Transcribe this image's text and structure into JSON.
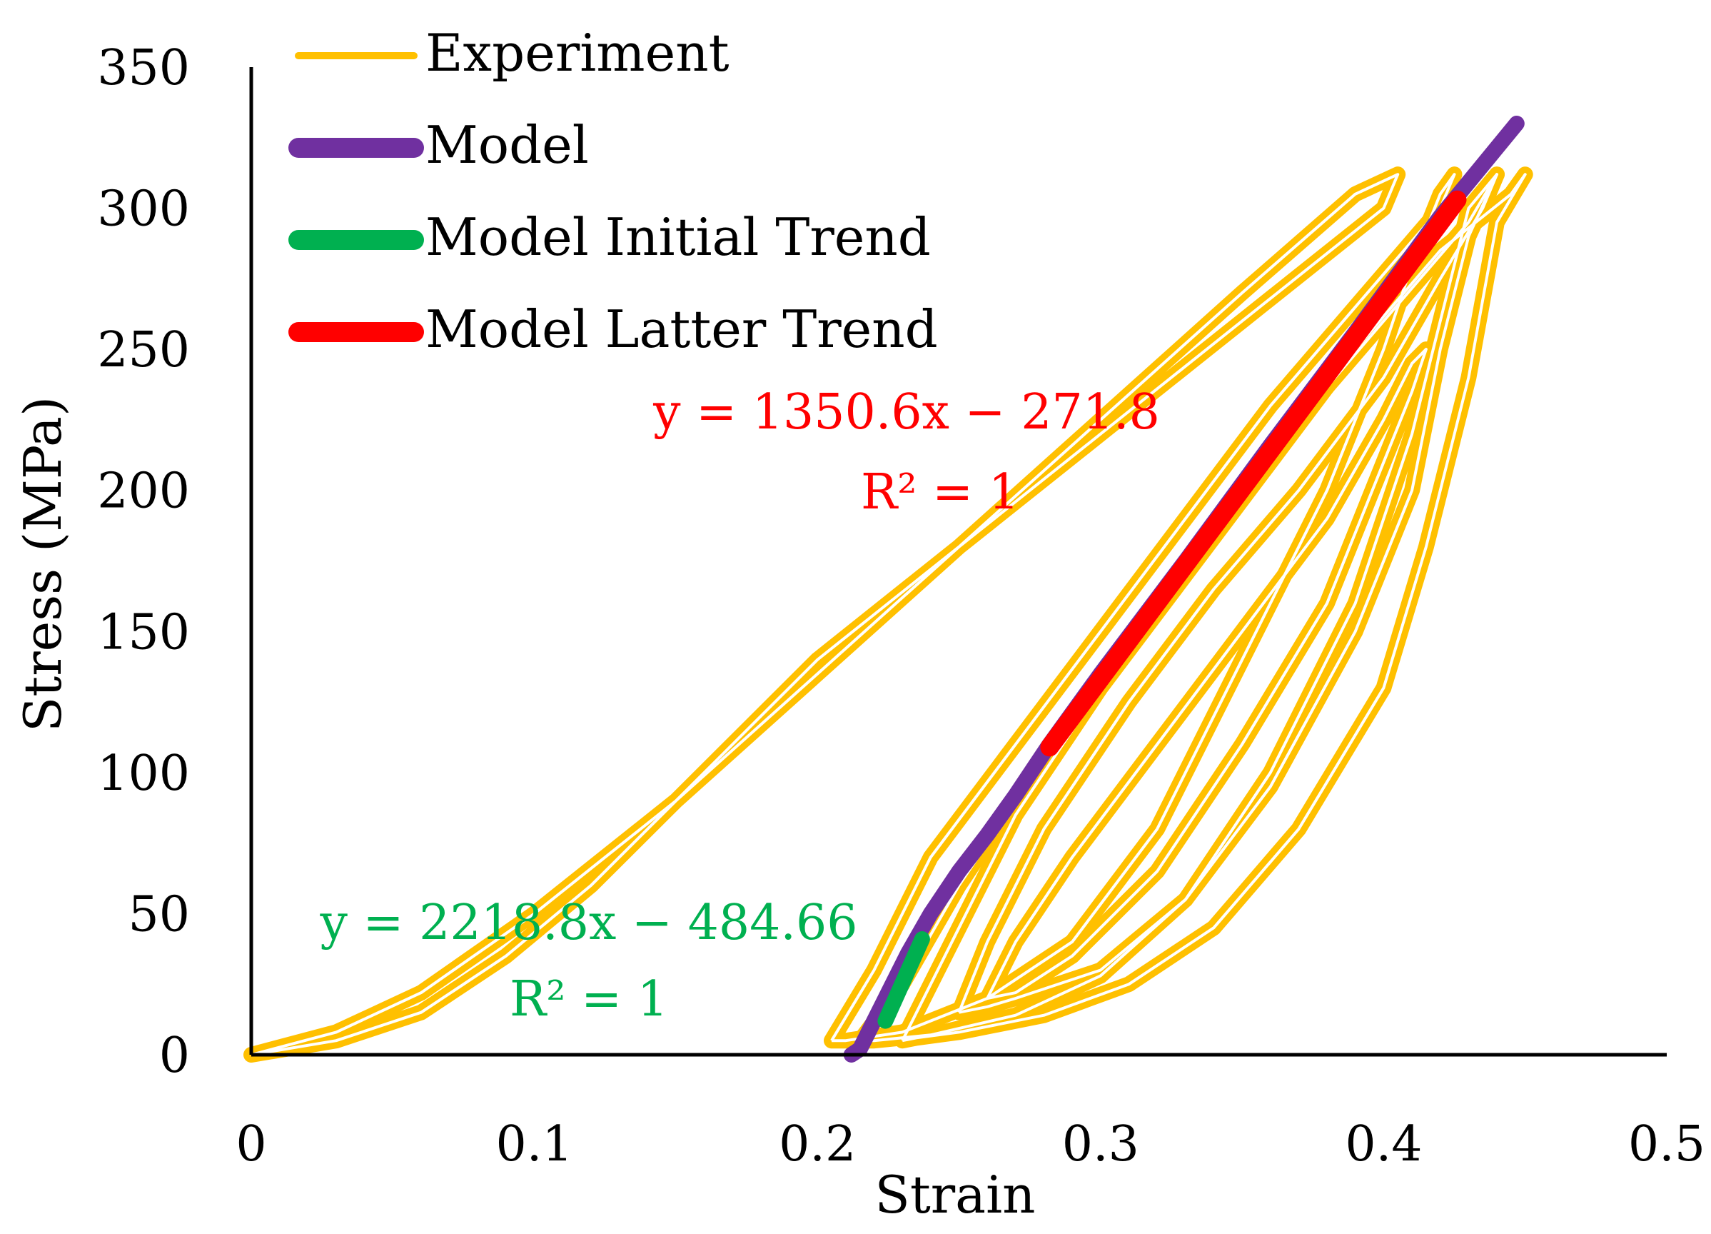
{
  "chart_data": {
    "type": "line",
    "title": "",
    "xlabel": "Strain",
    "ylabel": "Stress (MPa)",
    "xlim": [
      0,
      0.5
    ],
    "ylim": [
      0,
      350
    ],
    "xticks": [
      0,
      0.1,
      0.2,
      0.3,
      0.4,
      0.5
    ],
    "xtick_labels": [
      "0",
      "0.1",
      "0.2",
      "0.3",
      "0.4",
      "0.5"
    ],
    "yticks": [
      0,
      50,
      100,
      150,
      200,
      250,
      300,
      350
    ],
    "ytick_labels": [
      "0",
      "50",
      "100",
      "150",
      "200",
      "250",
      "300",
      "350"
    ],
    "legend_position": "top-left",
    "series": [
      {
        "name": "Experiment",
        "color": "#FFC000",
        "style": "cyclic-hysteresis",
        "loops": [
          {
            "x": [
              0,
              0.03,
              0.06,
              0.09,
              0.12,
              0.15,
              0.2,
              0.25,
              0.3,
              0.35,
              0.4,
              0.405,
              0.39,
              0.35,
              0.3,
              0.25,
              0.2,
              0.15,
              0.1,
              0.06,
              0.03,
              0
            ],
            "y": [
              0,
              5,
              15,
              35,
              60,
              90,
              140,
              180,
              220,
              260,
              300,
              312,
              305,
              270,
              225,
              180,
              135,
              90,
              50,
              22,
              8,
              0
            ]
          },
          {
            "x": [
              0.205,
              0.22,
              0.24,
              0.27,
              0.3,
              0.33,
              0.36,
              0.39,
              0.42,
              0.425,
              0.42,
              0.41,
              0.4,
              0.38,
              0.35,
              0.32,
              0.29,
              0.26,
              0.23,
              0.21,
              0.205
            ],
            "y": [
              5,
              30,
              70,
              110,
              150,
              190,
              230,
              265,
              300,
              312,
              305,
              280,
              250,
              200,
              140,
              80,
              40,
              20,
              8,
              5,
              5
            ]
          },
          {
            "x": [
              0.215,
              0.23,
              0.25,
              0.28,
              0.31,
              0.34,
              0.37,
              0.4,
              0.43,
              0.44,
              0.43,
              0.42,
              0.41,
              0.39,
              0.36,
              0.33,
              0.3,
              0.27,
              0.24,
              0.22,
              0.215
            ],
            "y": [
              5,
              25,
              60,
              105,
              145,
              185,
              225,
              260,
              295,
              312,
              300,
              260,
              220,
              160,
              100,
              55,
              28,
              14,
              7,
              5,
              5
            ]
          },
          {
            "x": [
              0.23,
              0.25,
              0.27,
              0.3,
              0.33,
              0.36,
              0.39,
              0.42,
              0.445,
              0.45,
              0.44,
              0.43,
              0.415,
              0.4,
              0.37,
              0.34,
              0.31,
              0.28,
              0.25,
              0.235,
              0.23
            ],
            "y": [
              5,
              45,
              85,
              130,
              170,
              210,
              250,
              285,
              305,
              312,
              295,
              240,
              180,
              130,
              80,
              45,
              25,
              14,
              8,
              6,
              5
            ]
          },
          {
            "x": [
              0.25,
              0.26,
              0.28,
              0.31,
              0.34,
              0.37,
              0.4,
              0.42,
              0.435,
              0.44,
              0.43,
              0.42,
              0.41,
              0.39,
              0.36,
              0.33,
              0.3,
              0.27,
              0.26,
              0.25
            ],
            "y": [
              15,
              40,
              80,
              125,
              165,
              200,
              240,
              275,
              300,
              312,
              290,
              250,
              200,
              150,
              95,
              55,
              30,
              20,
              17,
              15
            ]
          },
          {
            "x": [
              0.26,
              0.27,
              0.29,
              0.32,
              0.35,
              0.38,
              0.4,
              0.41,
              0.415,
              0.41,
              0.4,
              0.38,
              0.35,
              0.32,
              0.29,
              0.27,
              0.26
            ],
            "y": [
              20,
              40,
              70,
              110,
              150,
              190,
              225,
              245,
              250,
              235,
              210,
              160,
              110,
              65,
              35,
              22,
              20
            ]
          }
        ]
      },
      {
        "name": "Model",
        "color": "#7030A0",
        "x": [
          0.212,
          0.215,
          0.22,
          0.225,
          0.232,
          0.24,
          0.25,
          0.26,
          0.27,
          0.282,
          0.3,
          0.33,
          0.36,
          0.39,
          0.42,
          0.447
        ],
        "y": [
          0,
          2,
          12,
          22,
          36,
          50,
          65,
          78,
          92,
          110,
          135,
          175,
          216,
          256,
          297,
          330
        ]
      },
      {
        "name": "Model Initial Trend",
        "color": "#00B050",
        "x": [
          0.224,
          0.237
        ],
        "y": [
          12,
          41
        ]
      },
      {
        "name": "Model Latter Trend",
        "color": "#FF0000",
        "x": [
          0.282,
          0.426
        ],
        "y": [
          109,
          303
        ]
      }
    ],
    "annotations": [
      {
        "id": "latter",
        "color": "#FF0000",
        "equation": "y = 1350.6x − 271.8",
        "r2": "R² = 1"
      },
      {
        "id": "initial",
        "color": "#00B050",
        "equation": "y = 2218.8x − 484.66",
        "r2": "R² = 1"
      }
    ]
  }
}
